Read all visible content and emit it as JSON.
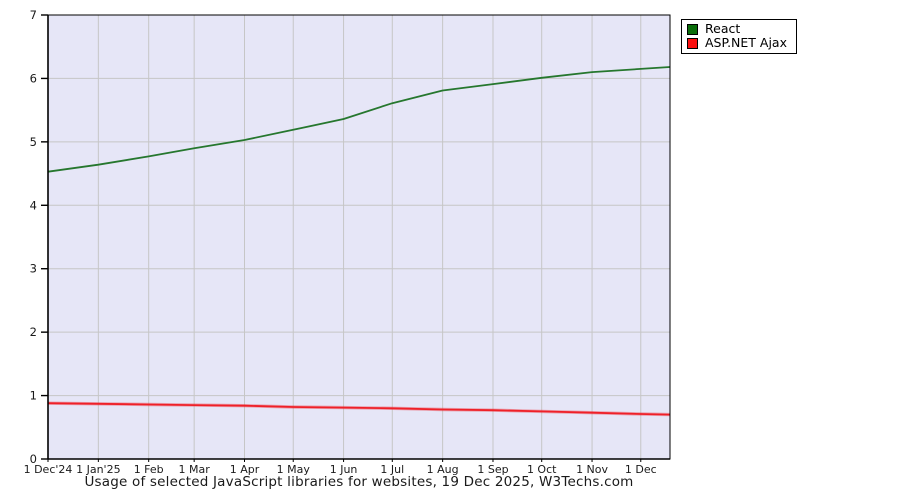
{
  "chart_data": {
    "type": "line",
    "title": "Usage of selected JavaScript libraries for websites, 19 Dec 2025, W3Techs.com",
    "xlabel": "",
    "ylabel": "",
    "ylim": [
      0,
      7
    ],
    "y_ticks": [
      "0",
      "1",
      "2",
      "3",
      "4",
      "5",
      "6",
      "7"
    ],
    "x_tick_labels": [
      "1 Dec'24",
      "1 Jan'25",
      "1 Feb",
      "1 Mar",
      "1 Apr",
      "1 May",
      "1 Jun",
      "1 Jul",
      "1 Aug",
      "1 Sep",
      "1 Oct",
      "1 Nov",
      "1 Dec"
    ],
    "x_tick_days": [
      0,
      31,
      62,
      90,
      121,
      151,
      182,
      212,
      243,
      274,
      304,
      335,
      365
    ],
    "x_days": [
      0,
      31,
      62,
      90,
      121,
      151,
      182,
      212,
      243,
      274,
      304,
      335,
      365,
      383
    ],
    "x_total_days": 383,
    "grid": true,
    "legend_position": "top-right-outside",
    "series": [
      {
        "name": "React",
        "swatch_color": "#0a6d0a",
        "line_color": "#26772e",
        "values": [
          4.53,
          4.64,
          4.77,
          4.9,
          5.03,
          5.19,
          5.36,
          5.61,
          5.81,
          5.91,
          6.01,
          6.1,
          6.15,
          6.18
        ]
      },
      {
        "name": "ASP.NET Ajax",
        "swatch_color": "#fb0f0f",
        "line_color": "#ef2028",
        "values": [
          0.88,
          0.87,
          0.86,
          0.85,
          0.84,
          0.82,
          0.81,
          0.8,
          0.78,
          0.77,
          0.75,
          0.73,
          0.71,
          0.7
        ]
      }
    ],
    "colors": {
      "plot_background": "#e6e6f7",
      "grid_line": "#c6c6c6",
      "axis": "#000000",
      "label_text": "#1a1a1a"
    }
  }
}
